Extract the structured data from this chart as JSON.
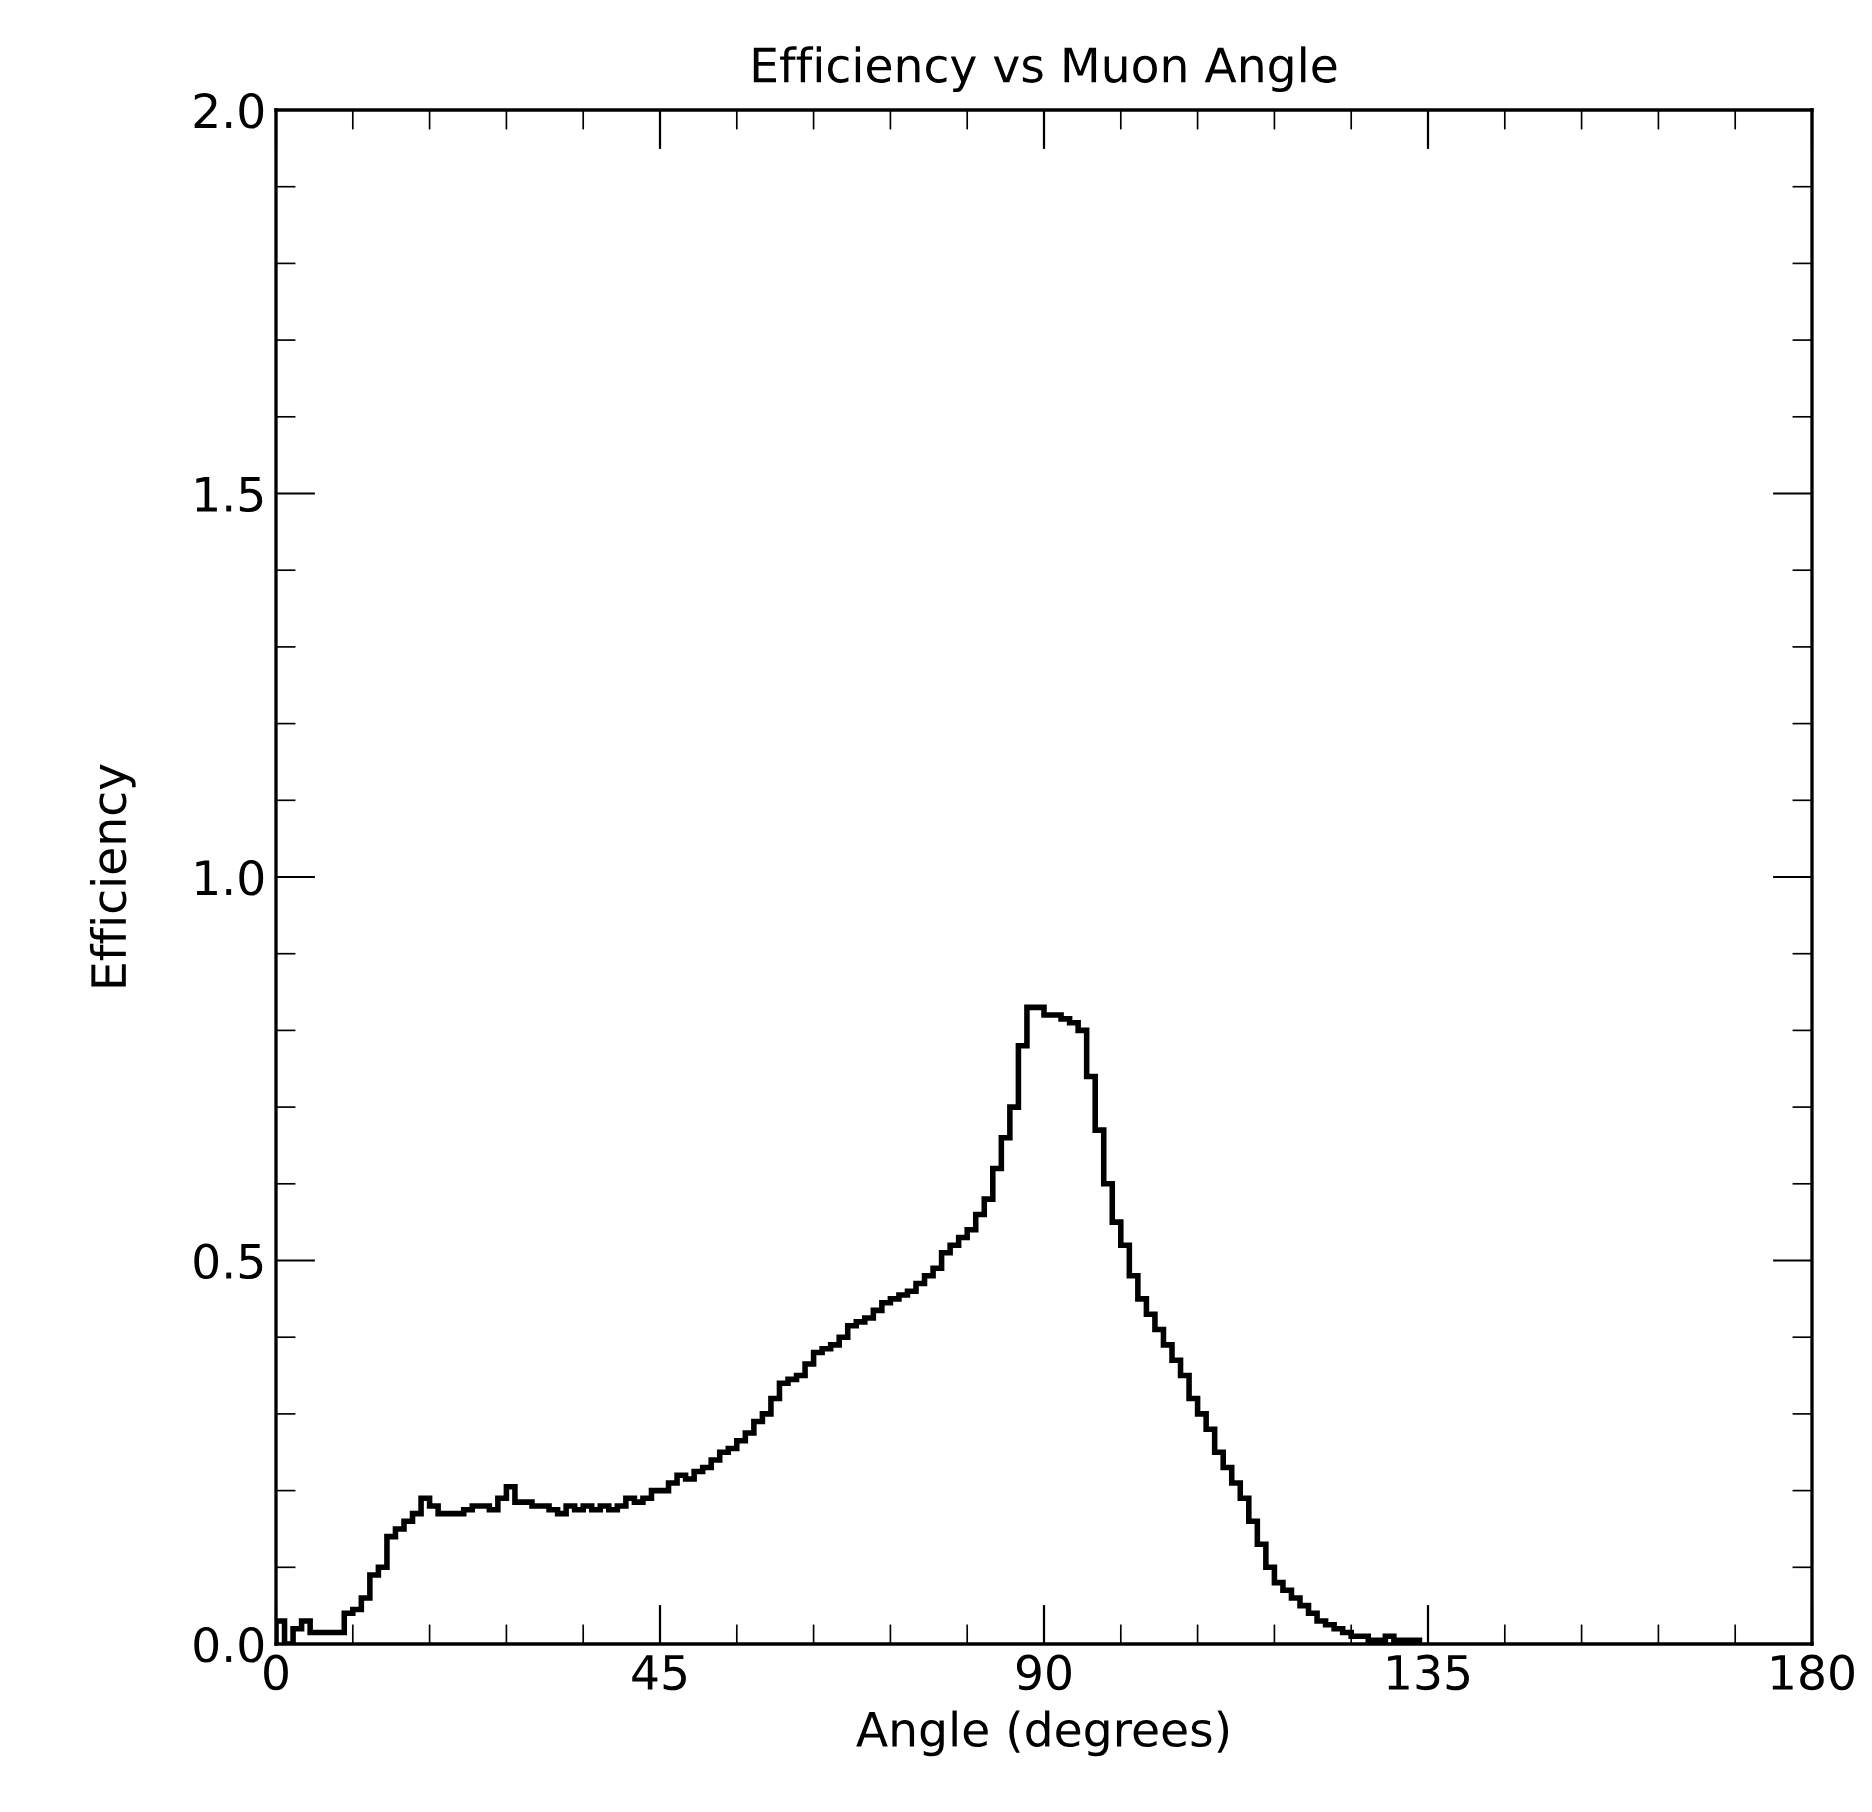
{
  "chart_data": {
    "type": "histogram",
    "title": "Efficiency vs Muon Angle",
    "xlabel": "Angle (degrees)",
    "ylabel": "Efficiency",
    "bins": [
      0,
      1,
      2,
      3,
      4,
      5,
      6,
      7,
      8,
      9,
      10,
      11,
      12,
      13,
      14,
      15,
      16,
      17,
      18,
      19,
      20,
      21,
      22,
      23,
      24,
      25,
      26,
      27,
      28,
      29,
      30,
      31,
      32,
      33,
      34,
      35,
      36,
      37,
      38,
      39,
      40,
      41,
      42,
      43,
      44,
      45,
      46,
      47,
      48,
      49,
      50,
      51,
      52,
      53,
      54,
      55,
      56,
      57,
      58,
      59,
      60,
      61,
      62,
      63,
      64,
      65,
      66,
      67,
      68,
      69,
      70,
      71,
      72,
      73,
      74,
      75,
      76,
      77,
      78,
      79,
      80,
      81,
      82,
      83,
      84,
      85,
      86,
      87,
      88,
      89,
      90,
      91,
      92,
      93,
      94,
      95,
      96,
      97,
      98,
      99,
      100,
      101,
      102,
      103,
      104,
      105,
      106,
      107,
      108,
      109,
      110,
      111,
      112,
      113,
      114,
      115,
      116,
      117,
      118,
      119,
      120,
      121,
      122,
      123,
      124,
      125,
      126,
      127,
      128,
      129,
      130,
      131,
      132,
      133,
      134
    ],
    "values": [
      0.03,
      0,
      0.02,
      0.03,
      0.015,
      0.015,
      0.015,
      0.015,
      0.04,
      0.045,
      0.06,
      0.09,
      0.1,
      0.14,
      0.15,
      0.16,
      0.17,
      0.19,
      0.18,
      0.17,
      0.17,
      0.17,
      0.175,
      0.18,
      0.18,
      0.175,
      0.19,
      0.205,
      0.185,
      0.185,
      0.18,
      0.18,
      0.175,
      0.17,
      0.18,
      0.175,
      0.18,
      0.175,
      0.18,
      0.175,
      0.18,
      0.19,
      0.185,
      0.19,
      0.2,
      0.2,
      0.21,
      0.22,
      0.215,
      0.225,
      0.23,
      0.24,
      0.25,
      0.255,
      0.265,
      0.275,
      0.29,
      0.3,
      0.32,
      0.34,
      0.345,
      0.35,
      0.365,
      0.38,
      0.385,
      0.39,
      0.4,
      0.415,
      0.42,
      0.425,
      0.435,
      0.445,
      0.45,
      0.455,
      0.46,
      0.47,
      0.48,
      0.49,
      0.51,
      0.52,
      0.53,
      0.54,
      0.56,
      0.58,
      0.62,
      0.66,
      0.7,
      0.78,
      0.83,
      0.83,
      0.82,
      0.82,
      0.815,
      0.81,
      0.8,
      0.74,
      0.67,
      0.6,
      0.55,
      0.52,
      0.48,
      0.45,
      0.43,
      0.41,
      0.39,
      0.37,
      0.35,
      0.32,
      0.3,
      0.28,
      0.25,
      0.23,
      0.21,
      0.19,
      0.16,
      0.13,
      0.1,
      0.08,
      0.07,
      0.06,
      0.05,
      0.04,
      0.03,
      0.025,
      0.02,
      0.015,
      0.01,
      0.01,
      0.005,
      0.005,
      0.01,
      0.005,
      0.005,
      0.005
    ],
    "color": "#000000",
    "xlim": [
      0,
      180
    ],
    "ylim": [
      0,
      2.0
    ],
    "xticks": [
      0,
      45,
      90,
      135,
      180
    ],
    "yticks": [
      {
        "value": 0,
        "label": "0.0"
      },
      0.5,
      {
        "value": 1.0,
        "label": "1.0"
      },
      1.5,
      {
        "value": 2.0,
        "label": "2.0"
      }
    ],
    "grid": false,
    "legend": false
  }
}
